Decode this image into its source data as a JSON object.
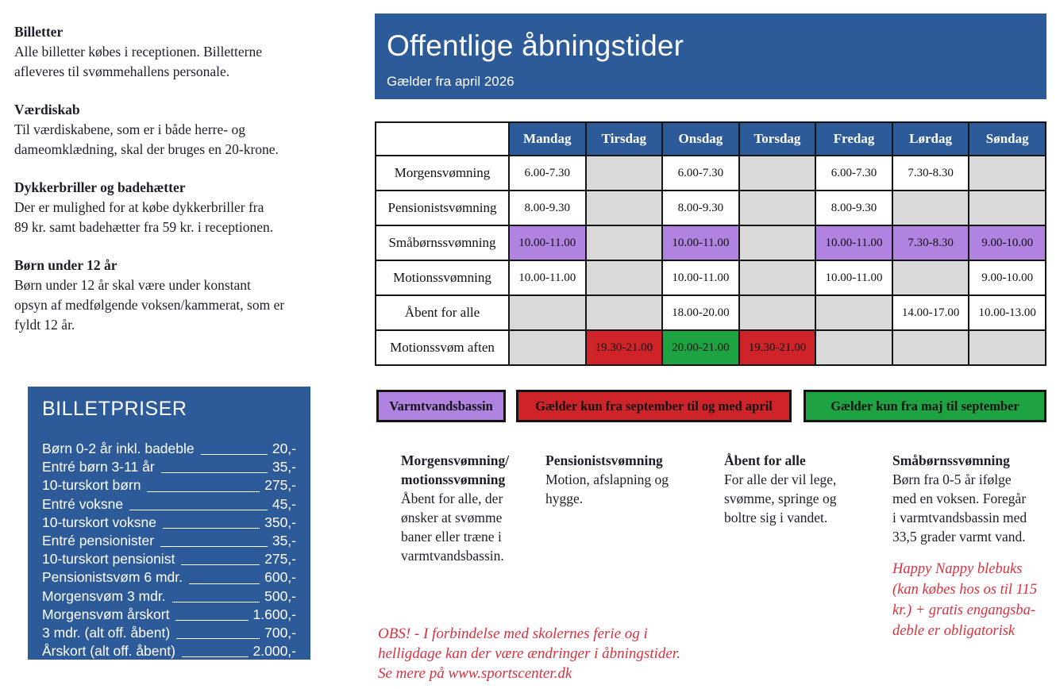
{
  "colors": {
    "blue": "#2d5a99",
    "gray": "#d9d9d9",
    "white": "#ffffff",
    "purple": "#b183e1",
    "red": "#ce2329",
    "green": "#1ea343",
    "red_text": "#d9303e"
  },
  "left_column": {
    "sections": [
      {
        "heading": "Billetter",
        "body": "Alle billetter købes i receptionen. Billetterne\nafleveres til svømmehallens personale."
      },
      {
        "heading": "Værdiskab",
        "body": "Til værdiskabene, som er i både herre- og\ndameomklædning, skal der bruges en 20-krone."
      },
      {
        "heading": "Dykkerbriller og badehætter",
        "body": "Der er mulighed for at købe dykkerbriller fra\n89 kr. samt badehætter fra 59 kr. i receptionen."
      },
      {
        "heading": "Børn under 12 år",
        "body": "Børn under 12 år skal være under konstant\nopsyn af medfølgende voksen/kammerat, som er\nfyldt 12 år."
      }
    ]
  },
  "price_box": {
    "title": "BILLETPRISER",
    "items": [
      {
        "label": "Børn 0-2 år inkl. badeble",
        "price": "20,-"
      },
      {
        "label": "Entré børn 3-11 år",
        "price": "35,-"
      },
      {
        "label": "10-turskort børn",
        "price": "275,-"
      },
      {
        "label": "Entré voksne",
        "price": "45,-"
      },
      {
        "label": "10-turskort voksne",
        "price": "350,-"
      },
      {
        "label": "Entré pensionister",
        "price": "35,-"
      },
      {
        "label": "10-turskort pensionist",
        "price": "275,-"
      },
      {
        "label": "Pensionistsvøm 6 mdr.",
        "price": "600,-"
      },
      {
        "label": "Morgensvøm 3 mdr.",
        "price": "500,-"
      },
      {
        "label": "Morgensvøm årskort",
        "price": "1.600,-"
      },
      {
        "label": "3 mdr. (alt off. åbent)",
        "price": "700,-"
      },
      {
        "label": "Årskort (alt off. åbent)",
        "price": "2.000,-"
      }
    ]
  },
  "header": {
    "title": "Offentlige åbningstider",
    "subtitle": "Gælder fra april 2026"
  },
  "schedule": {
    "days": [
      "Mandag",
      "Tirsdag",
      "Onsdag",
      "Torsdag",
      "Fredag",
      "Lørdag",
      "Søndag"
    ],
    "rows": [
      {
        "label": "Morgensvømning",
        "cells": [
          {
            "text": "6.00-7.30",
            "bg": "white"
          },
          {
            "text": "",
            "bg": "gray"
          },
          {
            "text": "6.00-7.30",
            "bg": "white"
          },
          {
            "text": "",
            "bg": "gray"
          },
          {
            "text": "6.00-7.30",
            "bg": "white"
          },
          {
            "text": "7.30-8.30",
            "bg": "white"
          },
          {
            "text": "",
            "bg": "gray"
          }
        ]
      },
      {
        "label": "Pensionistsvømning",
        "cells": [
          {
            "text": "8.00-9.30",
            "bg": "white"
          },
          {
            "text": "",
            "bg": "gray"
          },
          {
            "text": "8.00-9.30",
            "bg": "white"
          },
          {
            "text": "",
            "bg": "gray"
          },
          {
            "text": "8.00-9.30",
            "bg": "white"
          },
          {
            "text": "",
            "bg": "gray"
          },
          {
            "text": "",
            "bg": "gray"
          }
        ]
      },
      {
        "label": "Småbørnssvømning",
        "cells": [
          {
            "text": "10.00-11.00",
            "bg": "purple"
          },
          {
            "text": "",
            "bg": "gray"
          },
          {
            "text": "10.00-11.00",
            "bg": "purple"
          },
          {
            "text": "",
            "bg": "gray"
          },
          {
            "text": "10.00-11.00",
            "bg": "purple"
          },
          {
            "text": "7.30-8.30",
            "bg": "purple"
          },
          {
            "text": "9.00-10.00",
            "bg": "purple"
          }
        ]
      },
      {
        "label": "Motionssvømning",
        "cells": [
          {
            "text": "10.00-11.00",
            "bg": "white"
          },
          {
            "text": "",
            "bg": "gray"
          },
          {
            "text": "10.00-11.00",
            "bg": "white"
          },
          {
            "text": "",
            "bg": "gray"
          },
          {
            "text": "10.00-11.00",
            "bg": "white"
          },
          {
            "text": "",
            "bg": "gray"
          },
          {
            "text": "9.00-10.00",
            "bg": "white"
          }
        ]
      },
      {
        "label": "Åbent for alle",
        "cells": [
          {
            "text": "",
            "bg": "gray"
          },
          {
            "text": "",
            "bg": "gray"
          },
          {
            "text": "18.00-20.00",
            "bg": "white"
          },
          {
            "text": "",
            "bg": "gray"
          },
          {
            "text": "",
            "bg": "gray"
          },
          {
            "text": "14.00-17.00",
            "bg": "white"
          },
          {
            "text": "10.00-13.00",
            "bg": "white"
          }
        ]
      },
      {
        "label": "Motionssvøm aften",
        "cells": [
          {
            "text": "",
            "bg": "gray"
          },
          {
            "text": "19.30-21.00",
            "bg": "red"
          },
          {
            "text": "20.00-21.00",
            "bg": "green"
          },
          {
            "text": "19.30-21.00",
            "bg": "red"
          },
          {
            "text": "",
            "bg": "gray"
          },
          {
            "text": "",
            "bg": "gray"
          },
          {
            "text": "",
            "bg": "gray"
          }
        ]
      }
    ]
  },
  "legend": [
    {
      "label": "Varmtvandsbassin",
      "color": "#b183e1"
    },
    {
      "label": "Gælder kun fra september til og med april",
      "color": "#ce2329"
    },
    {
      "label": "Gælder kun fra maj til september",
      "color": "#1ea343"
    }
  ],
  "descriptions": [
    {
      "title": "Morgensvømning/\nmotionssvømning",
      "body": "Åbent for alle, der\nønsker at svømme\nbaner eller træne i\nvarmtvandsbassin."
    },
    {
      "title": "Pensionistsvømning",
      "body": "Motion, afslapning og\nhygge."
    },
    {
      "title": "Åbent for alle",
      "body": "For alle der vil lege,\nsvømme, springe og\nboltre sig i vandet."
    },
    {
      "title": "Småbørnssvømning",
      "body": "Børn fra 0-5 år ifølge\nmed en voksen. Foregår\ni varmtvandsbassin med\n33,5 grader varmt vand."
    }
  ],
  "notes": {
    "happy_nappy": "Happy Nappy blebuks\n(kan købes hos os til 115\nkr.) + gratis engangsba-\ndeble er obligatorisk",
    "obs": "OBS! - I forbindelse med skolernes ferie og i\nhelligdage kan der være ændringer i åbningstider.\nSe mere på www.sportscenter.dk"
  }
}
